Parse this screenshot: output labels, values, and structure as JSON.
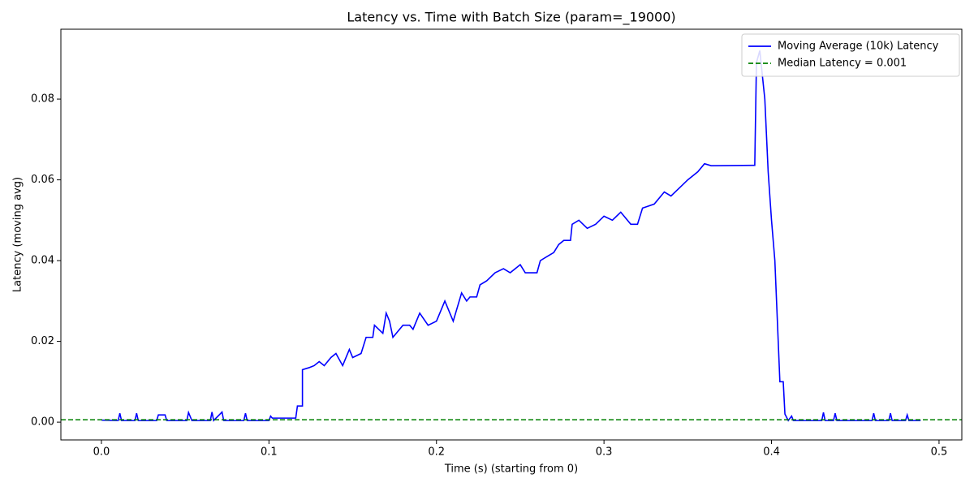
{
  "chart_data": {
    "type": "line",
    "title": "Latency vs. Time with Batch Size (param=_19000)",
    "xlabel": "Time (s) (starting from 0)",
    "ylabel": "Latency (moving avg)",
    "xlim": [
      -0.0242,
      0.5136
    ],
    "ylim": [
      -0.0044,
      0.0973
    ],
    "xticks": [
      {
        "value": 0,
        "label": "0.0"
      },
      0.1,
      0.2,
      0.3,
      0.4,
      0.5
    ],
    "yticks": [
      {
        "value": 0,
        "label": "0.00"
      },
      {
        "value": 0.02,
        "label": "0.02"
      },
      {
        "value": 0.04,
        "label": "0.04"
      },
      {
        "value": 0.06,
        "label": "0.06"
      },
      {
        "value": 0.08,
        "label": "0.08"
      }
    ],
    "grid": false,
    "legend": "upper right",
    "x": [
      0.0,
      0.01,
      0.011,
      0.012,
      0.02,
      0.021,
      0.022,
      0.033,
      0.034,
      0.038,
      0.039,
      0.051,
      0.052,
      0.054,
      0.065,
      0.066,
      0.067,
      0.072,
      0.073,
      0.085,
      0.086,
      0.087,
      0.1,
      0.101,
      0.102,
      0.11,
      0.116,
      0.117,
      0.12,
      0.12,
      0.124,
      0.127,
      0.13,
      0.133,
      0.137,
      0.14,
      0.144,
      0.148,
      0.15,
      0.155,
      0.158,
      0.162,
      0.163,
      0.168,
      0.17,
      0.172,
      0.174,
      0.18,
      0.184,
      0.186,
      0.19,
      0.195,
      0.2,
      0.205,
      0.21,
      0.215,
      0.218,
      0.22,
      0.224,
      0.226,
      0.23,
      0.235,
      0.24,
      0.244,
      0.25,
      0.253,
      0.26,
      0.262,
      0.266,
      0.27,
      0.273,
      0.276,
      0.28,
      0.281,
      0.285,
      0.29,
      0.295,
      0.3,
      0.305,
      0.31,
      0.316,
      0.32,
      0.323,
      0.33,
      0.336,
      0.34,
      0.345,
      0.35,
      0.356,
      0.36,
      0.364,
      0.389,
      0.39,
      0.391,
      0.393,
      0.396,
      0.398,
      0.4,
      0.402,
      0.404,
      0.405,
      0.407,
      0.408,
      0.41,
      0.412,
      0.413,
      0.43,
      0.431,
      0.432,
      0.437,
      0.438,
      0.439,
      0.46,
      0.461,
      0.462,
      0.47,
      0.471,
      0.472,
      0.48,
      0.481,
      0.482,
      0.489
    ],
    "series": [
      {
        "name": "Moving Average (10k) Latency",
        "color": "#0000ff",
        "values": [
          0.0005,
          0.0004,
          0.0022,
          0.0004,
          0.0004,
          0.0022,
          0.0004,
          0.0004,
          0.0018,
          0.0018,
          0.0004,
          0.0004,
          0.0024,
          0.0004,
          0.0004,
          0.0025,
          0.0004,
          0.0025,
          0.0004,
          0.0004,
          0.0022,
          0.0004,
          0.0004,
          0.0015,
          0.001,
          0.001,
          0.001,
          0.004,
          0.004,
          0.013,
          0.0135,
          0.014,
          0.015,
          0.014,
          0.016,
          0.017,
          0.014,
          0.018,
          0.016,
          0.017,
          0.021,
          0.021,
          0.024,
          0.022,
          0.027,
          0.025,
          0.021,
          0.024,
          0.024,
          0.023,
          0.027,
          0.024,
          0.025,
          0.03,
          0.025,
          0.032,
          0.03,
          0.031,
          0.031,
          0.034,
          0.035,
          0.037,
          0.038,
          0.037,
          0.039,
          0.037,
          0.037,
          0.04,
          0.041,
          0.042,
          0.044,
          0.045,
          0.045,
          0.049,
          0.05,
          0.048,
          0.049,
          0.051,
          0.05,
          0.052,
          0.049,
          0.049,
          0.053,
          0.054,
          0.057,
          0.056,
          0.058,
          0.06,
          0.062,
          0.064,
          0.0635,
          0.0636,
          0.0636,
          0.089,
          0.092,
          0.08,
          0.062,
          0.05,
          0.04,
          0.02,
          0.01,
          0.01,
          0.002,
          0.0004,
          0.0015,
          0.0004,
          0.0004,
          0.0024,
          0.0004,
          0.0004,
          0.0022,
          0.0004,
          0.0004,
          0.0022,
          0.0004,
          0.0004,
          0.0022,
          0.0004,
          0.0004,
          0.0018,
          0.0004,
          0.0004
        ]
      }
    ],
    "hlines": [
      {
        "name": "Median Latency = 0.001",
        "value": 0.0006,
        "color": "#008000",
        "style": "dashed"
      }
    ]
  }
}
